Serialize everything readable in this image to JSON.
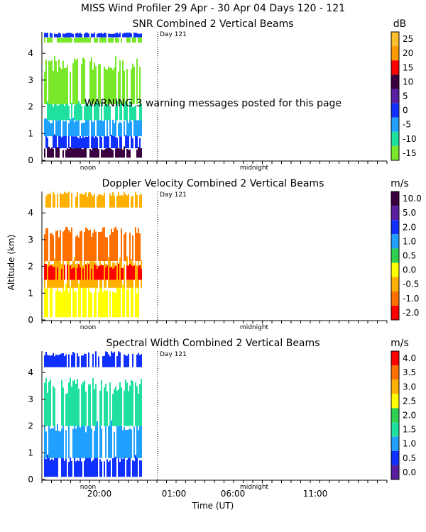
{
  "header": {
    "title": "MISS Wind Profiler  29 Apr - 30 Apr 04 Days 120 - 121"
  },
  "warning": "WARNING  3 warning messages posted for this page",
  "y_axis_label": "Altitude (km)",
  "x_axis_label": "Time (UT)",
  "colors": {
    "axis": "#000000",
    "background": "#ffffff"
  },
  "chart_data": [
    {
      "type": "heatmap",
      "title": "SNR Combined 2 Vertical Beams",
      "units": "dB",
      "ylim": [
        0,
        4.8
      ],
      "yticks": [
        0,
        1,
        2,
        3,
        4
      ],
      "day_marker": "Day 121",
      "time_markers": [
        "noon",
        "midnight"
      ],
      "colorbar": [
        {
          "label": "25",
          "color": "#fbc02d"
        },
        {
          "label": "20",
          "color": "#ff9900"
        },
        {
          "label": "15",
          "color": "#ff0000"
        },
        {
          "label": "10",
          "color": "#3a0040"
        },
        {
          "label": "5",
          "color": "#5a1fa0"
        },
        {
          "label": "0",
          "color": "#1030ff"
        },
        {
          "label": "-5",
          "color": "#20a0ff"
        },
        {
          "label": "-10",
          "color": "#20e0a0"
        },
        {
          "label": "-15",
          "color": "#7ae82a"
        }
      ],
      "layers": [
        {
          "from": 0.1,
          "to": 0.45,
          "color": "#3a0040"
        },
        {
          "from": 0.45,
          "to": 0.9,
          "color": "#1030ff"
        },
        {
          "from": 0.9,
          "to": 1.5,
          "color": "#20a0ff"
        },
        {
          "from": 1.5,
          "to": 2.1,
          "color": "#20e0a0"
        },
        {
          "from": 2.1,
          "to": 3.6,
          "color": "#7ae82a"
        },
        {
          "from": 4.4,
          "to": 4.6,
          "color": "#7ae82a"
        },
        {
          "from": 4.6,
          "to": 4.75,
          "color": "#1030ff"
        }
      ]
    },
    {
      "type": "heatmap",
      "title": "Doppler Velocity Combined 2 Vertical Beams",
      "units": "m/s",
      "ylim": [
        0,
        4.8
      ],
      "yticks": [
        0,
        1,
        2,
        3,
        4
      ],
      "day_marker": "Day 121",
      "time_markers": [
        "noon",
        "midnight"
      ],
      "colorbar": [
        {
          "label": "10.0",
          "color": "#3a0040"
        },
        {
          "label": "5.0",
          "color": "#5a1fa0"
        },
        {
          "label": "2.0",
          "color": "#1030ff"
        },
        {
          "label": "1.0",
          "color": "#20a0ff"
        },
        {
          "label": "0.5",
          "color": "#30d050"
        },
        {
          "label": "0.0",
          "color": "#ffff00"
        },
        {
          "label": "-0.5",
          "color": "#ffb000"
        },
        {
          "label": "-1.0",
          "color": "#ff7000"
        },
        {
          "label": "-2.0",
          "color": "#ff0000"
        }
      ],
      "layers": [
        {
          "from": 0.1,
          "to": 1.2,
          "color": "#ffff00"
        },
        {
          "from": 1.2,
          "to": 2.2,
          "color": "#ffb000"
        },
        {
          "from": 1.5,
          "to": 2.0,
          "color": "#ff0000"
        },
        {
          "from": 2.2,
          "to": 3.3,
          "color": "#ff7000"
        },
        {
          "from": 4.2,
          "to": 4.7,
          "color": "#ffb000"
        }
      ]
    },
    {
      "type": "heatmap",
      "title": "Spectral Width Combined 2 Vertical Beams",
      "units": "m/s",
      "ylim": [
        0,
        4.8
      ],
      "yticks": [
        0,
        1,
        2,
        3,
        4
      ],
      "day_marker": "Day 121",
      "time_markers": [
        "noon",
        "midnight"
      ],
      "colorbar": [
        {
          "label": "4.0",
          "color": "#ff0000"
        },
        {
          "label": "3.5",
          "color": "#ff7000"
        },
        {
          "label": "3.0",
          "color": "#ffb000"
        },
        {
          "label": "2.5",
          "color": "#ffff00"
        },
        {
          "label": "2.0",
          "color": "#30d050"
        },
        {
          "label": "1.5",
          "color": "#20e0a0"
        },
        {
          "label": "1.0",
          "color": "#20a0ff"
        },
        {
          "label": "0.5",
          "color": "#1030ff"
        },
        {
          "label": "0.0",
          "color": "#5a1fa0"
        }
      ],
      "layers": [
        {
          "from": 0.1,
          "to": 0.8,
          "color": "#1030ff"
        },
        {
          "from": 0.8,
          "to": 2.0,
          "color": "#20a0ff"
        },
        {
          "from": 2.0,
          "to": 3.5,
          "color": "#20e0a0"
        },
        {
          "from": 4.2,
          "to": 4.7,
          "color": "#1030ff"
        }
      ]
    }
  ],
  "x_ticks": [
    "20:00",
    "01:00",
    "06:00",
    "11:00"
  ]
}
